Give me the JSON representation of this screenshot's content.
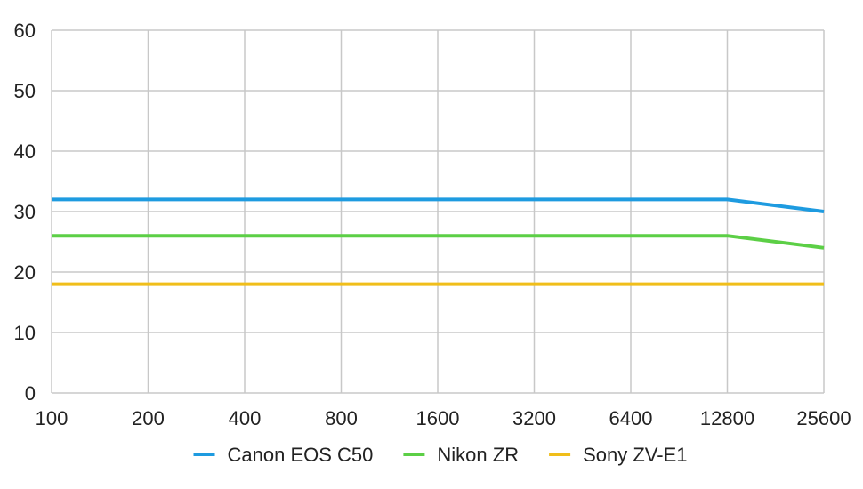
{
  "chart_data": {
    "type": "line",
    "title": "",
    "xlabel": "",
    "ylabel": "",
    "x": [
      "100",
      "200",
      "400",
      "800",
      "1600",
      "3200",
      "6400",
      "12800",
      "25600"
    ],
    "ylim": [
      0,
      60
    ],
    "yticks": [
      "0",
      "10",
      "20",
      "30",
      "40",
      "50",
      "60"
    ],
    "grid": true,
    "legend_position": "bottom",
    "series": [
      {
        "name": "Canon EOS C50",
        "color": "#1e9be0",
        "values": [
          32,
          32,
          32,
          32,
          32,
          32,
          32,
          32,
          30
        ]
      },
      {
        "name": "Nikon ZR",
        "color": "#5ccf46",
        "values": [
          26,
          26,
          26,
          26,
          26,
          26,
          26,
          26,
          24
        ]
      },
      {
        "name": "Sony ZV-E1",
        "color": "#f0be1a",
        "values": [
          18,
          18,
          18,
          18,
          18,
          18,
          18,
          18,
          18
        ]
      }
    ]
  }
}
